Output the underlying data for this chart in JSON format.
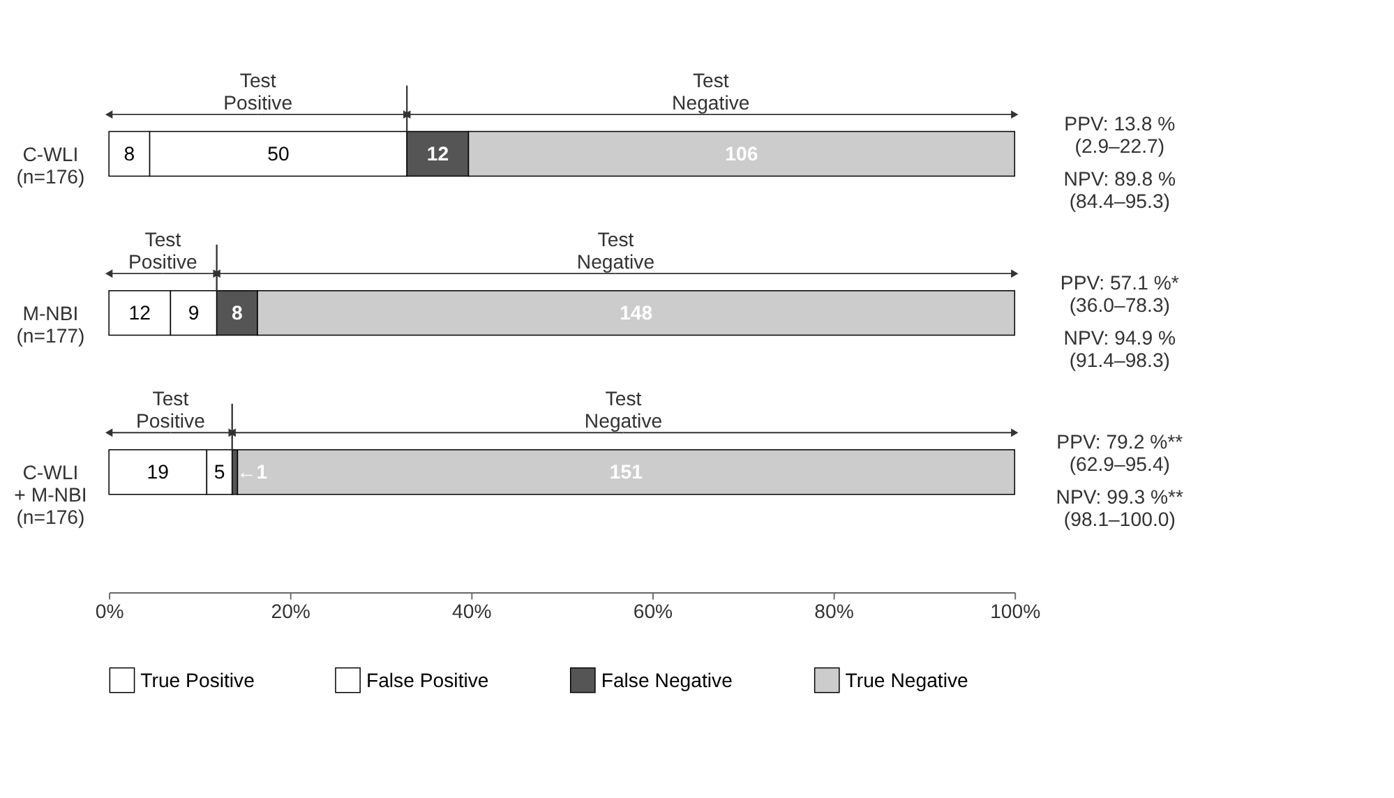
{
  "chart_data": {
    "type": "bar",
    "orientation": "horizontal",
    "stacked": true,
    "categories": [
      "C-WLI\n(n=176)",
      "M-NBI\n(n=177)",
      "C-WLI\n+ M-NBI\n(n=176)"
    ],
    "series": [
      {
        "name": "True Positive",
        "color": "#ffffff",
        "values": [
          4.5,
          6.8,
          10.8
        ]
      },
      {
        "name": "False Positive",
        "color": "#ffffff",
        "values": [
          28.4,
          5.1,
          2.8
        ]
      },
      {
        "name": "False Negative",
        "color": "#555555",
        "values": [
          6.8,
          4.5,
          0.6
        ]
      },
      {
        "name": "True Negative",
        "color": "#cccccc",
        "values": [
          60.3,
          83.6,
          85.8
        ]
      }
    ],
    "xlim": [
      0,
      100
    ],
    "xticks": [
      {
        "value": 0,
        "label": "0%"
      },
      {
        "value": 20,
        "label": "20%"
      },
      {
        "value": 40,
        "label": "40%"
      },
      {
        "value": 60,
        "label": "60%"
      },
      {
        "value": 80,
        "label": "80%"
      },
      {
        "value": 100,
        "label": "100%"
      }
    ],
    "legend": "bottom",
    "grid": false,
    "annotations": [
      "Test\nPositive",
      "Test\nNegative",
      "PPV: 13.8 %\n(2.9–22.7)",
      "NPV: 89.8 %\n(84.4–95.3)",
      "Test\nPositive",
      "Test\nNegative",
      "PPV: 57.1 %*\n(36.0–78.3)",
      "NPV: 94.9 %\n(91.4–98.3)",
      "Test\nPositive",
      "Test\nNegative",
      "PPV: 79.2 %**\n(62.9–95.4)",
      "NPV: 99.3 %**\n(98.1–100.0)",
      "8",
      "50",
      "12",
      "106",
      "12",
      "9",
      "8",
      "148",
      "19",
      "5",
      "←1",
      "151"
    ]
  }
}
